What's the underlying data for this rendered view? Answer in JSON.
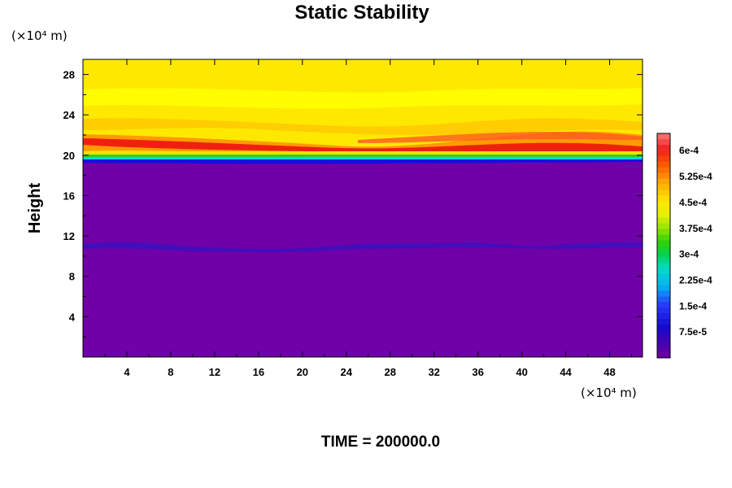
{
  "chart_data": {
    "type": "heatmap",
    "title": "Static Stability",
    "ylabel": "Height",
    "x_unit": "(×10⁴ m)",
    "y_unit": "(×10⁴ m)",
    "xlim": [
      0,
      51
    ],
    "ylim": [
      0,
      29.5
    ],
    "x_ticks": [
      "4",
      "8",
      "12",
      "16",
      "20",
      "24",
      "28",
      "32",
      "36",
      "40",
      "44",
      "48"
    ],
    "y_ticks": [
      "4",
      "8",
      "12",
      "16",
      "20",
      "24",
      "28"
    ],
    "colorbar_ticks": [
      "6e-4",
      "5.25e-4",
      "4.5e-4",
      "3.75e-4",
      "3e-4",
      "2.25e-4",
      "1.5e-4",
      "7.5e-5"
    ],
    "colorbar_range": [
      0,
      0.00065
    ],
    "footer": "TIME = 200000.0",
    "field": {
      "below_19_8": 0.0,
      "stripe_height": 11.3,
      "stripe_value": 3e-05,
      "tropopause_height": 19.9,
      "peak_band_height_left": 21.6,
      "peak_band_height_right": 20.8,
      "peak_value": 0.00056,
      "upper_layer_value": 0.00046
    },
    "colors": {
      "low": "#7000a8",
      "blue": "#1010e0",
      "cyan": "#00d8e8",
      "green": "#30d020",
      "yellow": "#ffe800",
      "orange": "#ff9a00",
      "red": "#f02010",
      "pink": "#ff7070"
    }
  }
}
